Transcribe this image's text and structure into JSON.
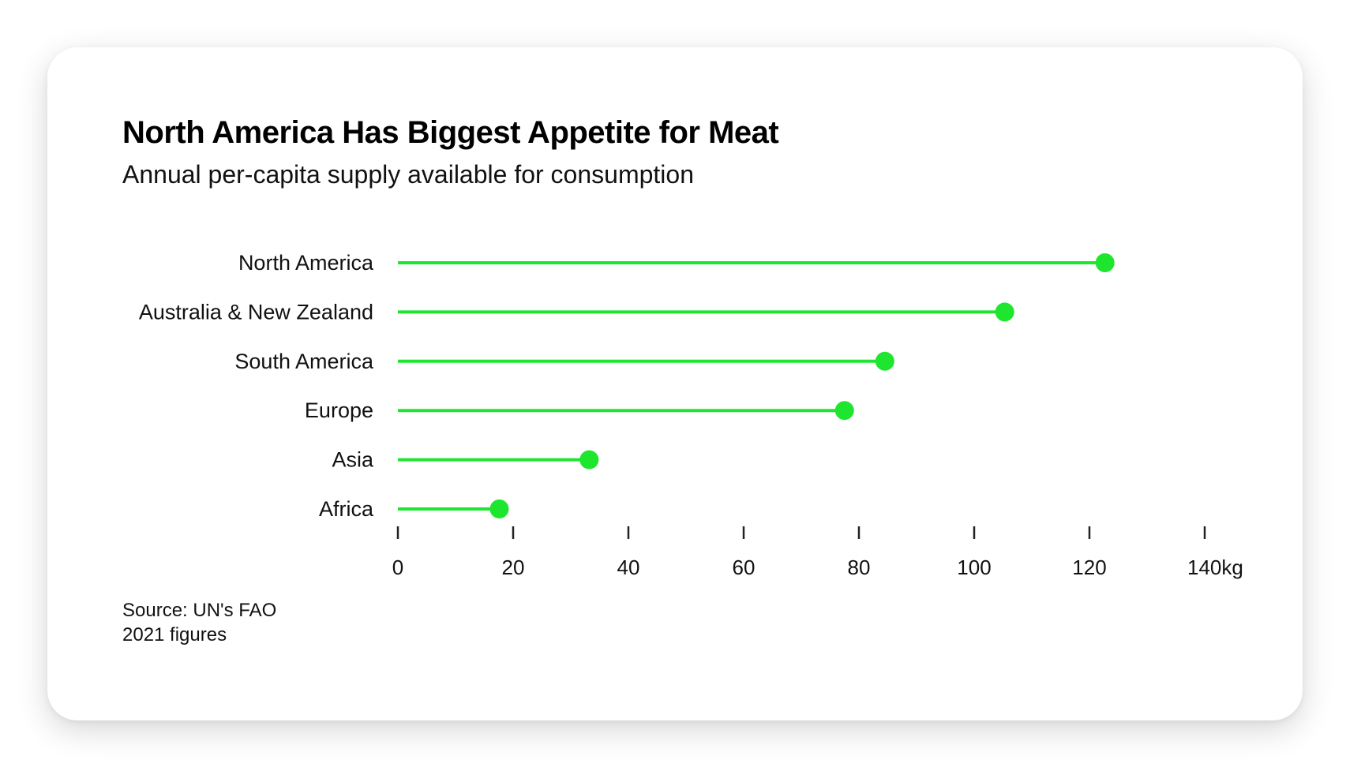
{
  "card": {
    "title": "North America Has Biggest Appetite for Meat",
    "subtitle": "Annual per-capita supply available for consumption",
    "source": "Source: UN's FAO",
    "note": "2021 figures"
  },
  "colors": {
    "series": "#1ee62f",
    "text": "#111111",
    "axis": "#222222"
  },
  "chart_data": {
    "type": "lollipop",
    "title": "North America Has Biggest Appetite for Meat",
    "subtitle": "Annual per-capita supply available for consumption",
    "categories": [
      "North America",
      "Australia & New Zealand",
      "South America",
      "Europe",
      "Asia",
      "Africa"
    ],
    "values": [
      122.7,
      105.3,
      84.5,
      77.5,
      33.2,
      17.6
    ],
    "xlim": [
      0,
      140
    ],
    "xticks": [
      "0",
      "20",
      "40",
      "60",
      "80",
      "100",
      "120",
      "140kg"
    ],
    "xtick_values": [
      0,
      20,
      40,
      60,
      80,
      100,
      120,
      140
    ],
    "unit": "kg",
    "grid": false,
    "legend": "none"
  }
}
